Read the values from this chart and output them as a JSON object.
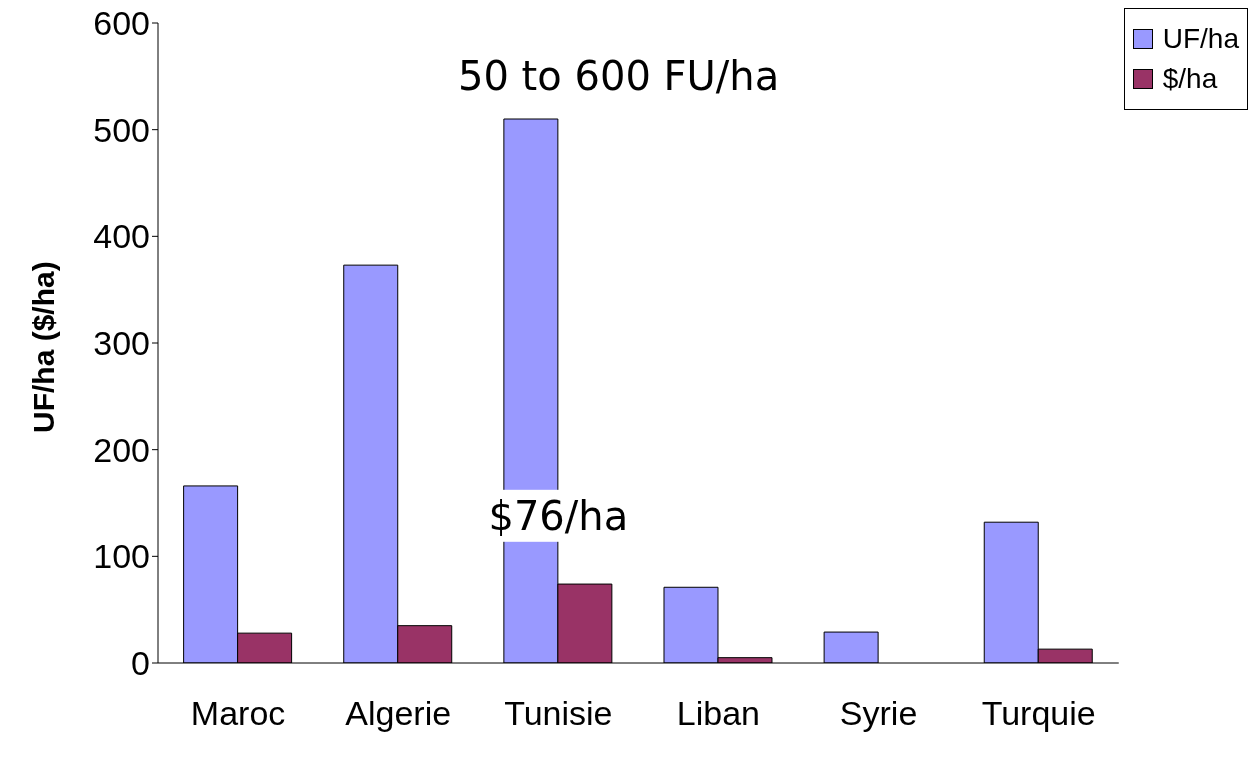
{
  "chart_data": {
    "type": "bar",
    "ylabel": "UF/ha ($/ha)",
    "categories": [
      "Maroc",
      "Algerie",
      "Tunisie",
      "Liban",
      "Syrie",
      "Turquie"
    ],
    "series": [
      {
        "name": "UF/ha",
        "color": "#9999ff",
        "values": [
          166,
          373,
          510,
          71,
          29,
          132
        ]
      },
      {
        "name": "$/ha",
        "color": "#993366",
        "values": [
          28,
          35,
          74,
          5,
          0,
          13
        ]
      }
    ],
    "ylim": [
      0,
      600
    ],
    "yticks": [
      0,
      100,
      200,
      300,
      400,
      500,
      600
    ],
    "grid": false,
    "legend": "top right",
    "annotations": [
      "50 to 600 FU/ha",
      {
        "text": "$76/ha",
        "x": "Tunisie",
        "y": 138
      }
    ]
  }
}
